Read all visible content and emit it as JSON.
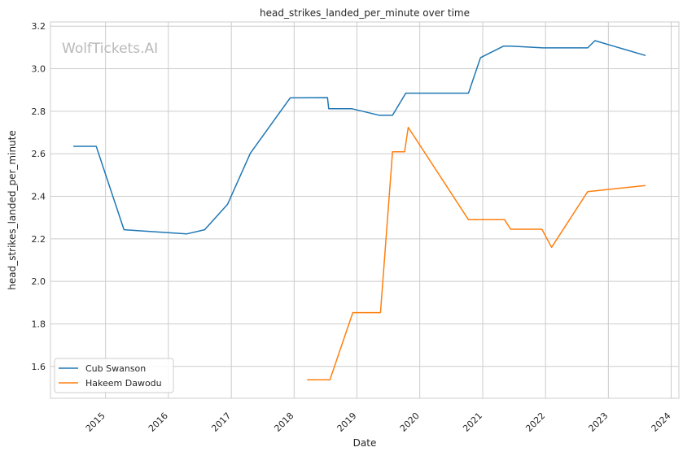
{
  "chart_data": {
    "type": "line",
    "title": "head_strikes_landed_per_minute over time",
    "xlabel": "Date",
    "ylabel": "head_strikes_landed_per_minute",
    "watermark": "WolfTickets.AI",
    "xlim": [
      "2014-02-15",
      "2024-02-15"
    ],
    "ylim": [
      1.45,
      3.22
    ],
    "x_ticks": [
      "2015-01-01",
      "2016-01-01",
      "2017-01-01",
      "2018-01-01",
      "2019-01-01",
      "2020-01-01",
      "2021-01-01",
      "2022-01-01",
      "2023-01-01",
      "2024-01-01"
    ],
    "x_tick_labels": [
      "2015",
      "2016",
      "2017",
      "2018",
      "2019",
      "2020",
      "2021",
      "2022",
      "2023",
      "2024"
    ],
    "y_ticks": [
      1.6,
      1.8,
      2.0,
      2.2,
      2.4,
      2.6,
      2.8,
      3.0,
      3.2
    ],
    "y_tick_labels": [
      "1.6",
      "1.8",
      "2.0",
      "2.2",
      "2.4",
      "2.6",
      "2.8",
      "3.0",
      "3.2"
    ],
    "grid": true,
    "legend_position": "lower-left",
    "series": [
      {
        "name": "Cub Swanson",
        "color": "#1f77b4",
        "points": [
          [
            "2014-06-28",
            2.635
          ],
          [
            "2014-11-08",
            2.635
          ],
          [
            "2015-04-18",
            2.243
          ],
          [
            "2016-04-16",
            2.223
          ],
          [
            "2016-07-30",
            2.243
          ],
          [
            "2016-12-10",
            2.362
          ],
          [
            "2017-04-22",
            2.603
          ],
          [
            "2017-12-09",
            2.863
          ],
          [
            "2018-07-14",
            2.864
          ],
          [
            "2018-07-21",
            2.812
          ],
          [
            "2018-12-01",
            2.812
          ],
          [
            "2019-05-11",
            2.781
          ],
          [
            "2019-07-27",
            2.781
          ],
          [
            "2019-10-12",
            2.885
          ],
          [
            "2020-10-10",
            2.885
          ],
          [
            "2020-12-19",
            3.052
          ],
          [
            "2021-05-01",
            3.106
          ],
          [
            "2021-06-15",
            3.106
          ],
          [
            "2021-12-18",
            3.098
          ],
          [
            "2022-09-03",
            3.098
          ],
          [
            "2022-10-15",
            3.132
          ],
          [
            "2023-08-05",
            3.062
          ]
        ]
      },
      {
        "name": "Hakeem Dawodu",
        "color": "#ff7f0e",
        "points": [
          [
            "2018-03-17",
            1.537
          ],
          [
            "2018-07-28",
            1.537
          ],
          [
            "2018-12-08",
            1.853
          ],
          [
            "2019-05-18",
            1.853
          ],
          [
            "2019-07-27",
            2.609
          ],
          [
            "2019-10-05",
            2.609
          ],
          [
            "2019-10-26",
            2.724
          ],
          [
            "2020-10-10",
            2.29
          ],
          [
            "2021-05-08",
            2.29
          ],
          [
            "2021-06-12",
            2.245
          ],
          [
            "2021-12-11",
            2.245
          ],
          [
            "2022-02-05",
            2.16
          ],
          [
            "2022-09-03",
            2.422
          ],
          [
            "2023-08-05",
            2.451
          ]
        ]
      }
    ]
  }
}
